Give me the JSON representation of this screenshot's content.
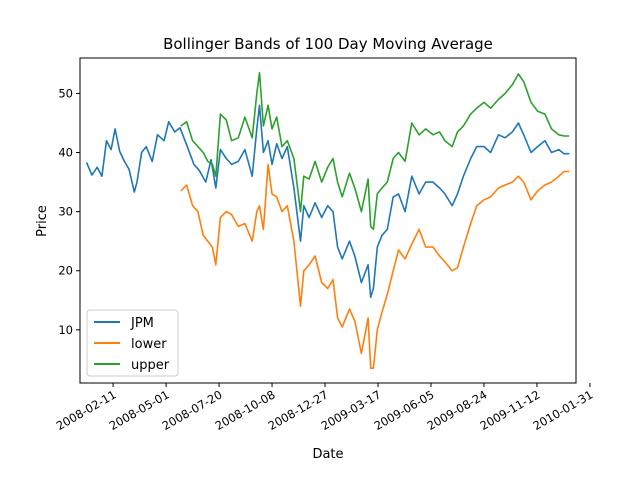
{
  "chart_data": {
    "type": "line",
    "title": "Bollinger Bands of 100 Day Moving Average",
    "xlabel": "Date",
    "ylabel": "Price",
    "xlim": [
      "2008-01-02",
      "2009-12-31"
    ],
    "ylim": [
      1,
      56
    ],
    "grid": false,
    "legend_position": "lower-left",
    "x_ticks": [
      "2008-02-11",
      "2008-05-01",
      "2008-07-20",
      "2008-10-08",
      "2008-12-27",
      "2009-03-17",
      "2009-06-05",
      "2009-08-24",
      "2009-11-12",
      "2010-01-31"
    ],
    "y_ticks": [
      10,
      20,
      30,
      40,
      50
    ],
    "series": [
      {
        "name": "JPM",
        "color": "#1f77b4",
        "points": [
          [
            "2008-01-02",
            38.3
          ],
          [
            "2008-01-10",
            36.2
          ],
          [
            "2008-01-18",
            37.5
          ],
          [
            "2008-01-25",
            36.0
          ],
          [
            "2008-02-01",
            42.0
          ],
          [
            "2008-02-08",
            40.5
          ],
          [
            "2008-02-14",
            44.0
          ],
          [
            "2008-02-21",
            40.2
          ],
          [
            "2008-02-28",
            38.5
          ],
          [
            "2008-03-06",
            37.2
          ],
          [
            "2008-03-14",
            33.3
          ],
          [
            "2008-03-18",
            35.0
          ],
          [
            "2008-03-25",
            40.0
          ],
          [
            "2008-04-01",
            41.0
          ],
          [
            "2008-04-10",
            38.5
          ],
          [
            "2008-04-18",
            43.0
          ],
          [
            "2008-04-28",
            42.0
          ],
          [
            "2008-05-05",
            45.2
          ],
          [
            "2008-05-14",
            43.5
          ],
          [
            "2008-05-22",
            44.2
          ],
          [
            "2008-06-02",
            41.0
          ],
          [
            "2008-06-12",
            38.0
          ],
          [
            "2008-06-20",
            37.0
          ],
          [
            "2008-06-30",
            35.0
          ],
          [
            "2008-07-08",
            38.8
          ],
          [
            "2008-07-15",
            34.0
          ],
          [
            "2008-07-22",
            40.5
          ],
          [
            "2008-07-31",
            39.0
          ],
          [
            "2008-08-08",
            38.0
          ],
          [
            "2008-08-18",
            38.5
          ],
          [
            "2008-08-28",
            40.5
          ],
          [
            "2008-09-08",
            36.0
          ],
          [
            "2008-09-15",
            44.0
          ],
          [
            "2008-09-19",
            48.0
          ],
          [
            "2008-09-25",
            40.0
          ],
          [
            "2008-10-02",
            42.0
          ],
          [
            "2008-10-08",
            38.0
          ],
          [
            "2008-10-15",
            41.5
          ],
          [
            "2008-10-23",
            39.0
          ],
          [
            "2008-10-31",
            41.0
          ],
          [
            "2008-11-10",
            34.0
          ],
          [
            "2008-11-20",
            25.0
          ],
          [
            "2008-11-25",
            31.0
          ],
          [
            "2008-12-03",
            29.0
          ],
          [
            "2008-12-12",
            31.5
          ],
          [
            "2008-12-22",
            29.0
          ],
          [
            "2008-12-31",
            31.0
          ],
          [
            "2009-01-08",
            30.0
          ],
          [
            "2009-01-15",
            24.0
          ],
          [
            "2009-01-22",
            22.0
          ],
          [
            "2009-02-02",
            25.0
          ],
          [
            "2009-02-10",
            22.5
          ],
          [
            "2009-02-20",
            18.0
          ],
          [
            "2009-03-02",
            21.0
          ],
          [
            "2009-03-06",
            15.5
          ],
          [
            "2009-03-10",
            17.0
          ],
          [
            "2009-03-16",
            24.0
          ],
          [
            "2009-03-23",
            26.0
          ],
          [
            "2009-03-31",
            27.0
          ],
          [
            "2009-04-09",
            32.5
          ],
          [
            "2009-04-17",
            33.0
          ],
          [
            "2009-04-27",
            30.0
          ],
          [
            "2009-05-07",
            36.0
          ],
          [
            "2009-05-18",
            33.0
          ],
          [
            "2009-05-28",
            35.0
          ],
          [
            "2009-06-08",
            35.0
          ],
          [
            "2009-06-18",
            34.0
          ],
          [
            "2009-06-26",
            33.0
          ],
          [
            "2009-07-07",
            31.0
          ],
          [
            "2009-07-15",
            33.0
          ],
          [
            "2009-07-24",
            36.0
          ],
          [
            "2009-08-04",
            39.0
          ],
          [
            "2009-08-13",
            41.0
          ],
          [
            "2009-08-24",
            41.0
          ],
          [
            "2009-09-03",
            40.0
          ],
          [
            "2009-09-15",
            43.0
          ],
          [
            "2009-09-25",
            42.5
          ],
          [
            "2009-10-06",
            43.5
          ],
          [
            "2009-10-15",
            45.0
          ],
          [
            "2009-10-23",
            43.0
          ],
          [
            "2009-11-03",
            40.0
          ],
          [
            "2009-11-13",
            41.0
          ],
          [
            "2009-11-24",
            42.0
          ],
          [
            "2009-12-04",
            40.0
          ],
          [
            "2009-12-15",
            40.5
          ],
          [
            "2009-12-23",
            39.8
          ],
          [
            "2009-12-31",
            39.8
          ]
        ]
      },
      {
        "name": "lower",
        "color": "#ff7f0e",
        "points": [
          [
            "2008-05-23",
            33.5
          ],
          [
            "2008-06-01",
            34.5
          ],
          [
            "2008-06-10",
            31.0
          ],
          [
            "2008-06-18",
            30.0
          ],
          [
            "2008-06-26",
            26.0
          ],
          [
            "2008-07-03",
            25.0
          ],
          [
            "2008-07-10",
            24.0
          ],
          [
            "2008-07-15",
            21.0
          ],
          [
            "2008-07-22",
            29.0
          ],
          [
            "2008-07-31",
            30.0
          ],
          [
            "2008-08-08",
            29.5
          ],
          [
            "2008-08-18",
            27.5
          ],
          [
            "2008-08-28",
            28.0
          ],
          [
            "2008-09-08",
            25.0
          ],
          [
            "2008-09-15",
            30.0
          ],
          [
            "2008-09-19",
            31.0
          ],
          [
            "2008-09-25",
            27.0
          ],
          [
            "2008-10-02",
            38.0
          ],
          [
            "2008-10-08",
            33.0
          ],
          [
            "2008-10-15",
            32.5
          ],
          [
            "2008-10-23",
            30.0
          ],
          [
            "2008-10-31",
            31.0
          ],
          [
            "2008-11-10",
            25.0
          ],
          [
            "2008-11-20",
            14.0
          ],
          [
            "2008-11-25",
            20.0
          ],
          [
            "2008-12-03",
            21.0
          ],
          [
            "2008-12-12",
            22.5
          ],
          [
            "2008-12-22",
            18.0
          ],
          [
            "2008-12-31",
            17.0
          ],
          [
            "2009-01-08",
            18.5
          ],
          [
            "2009-01-15",
            12.0
          ],
          [
            "2009-01-22",
            10.5
          ],
          [
            "2009-02-02",
            13.5
          ],
          [
            "2009-02-10",
            11.5
          ],
          [
            "2009-02-20",
            6.0
          ],
          [
            "2009-03-02",
            12.0
          ],
          [
            "2009-03-06",
            3.5
          ],
          [
            "2009-03-10",
            3.5
          ],
          [
            "2009-03-16",
            10.0
          ],
          [
            "2009-03-23",
            13.0
          ],
          [
            "2009-03-31",
            16.0
          ],
          [
            "2009-04-09",
            20.0
          ],
          [
            "2009-04-17",
            23.5
          ],
          [
            "2009-04-27",
            22.0
          ],
          [
            "2009-05-07",
            24.5
          ],
          [
            "2009-05-18",
            27.0
          ],
          [
            "2009-05-28",
            24.0
          ],
          [
            "2009-06-08",
            24.0
          ],
          [
            "2009-06-18",
            22.5
          ],
          [
            "2009-06-26",
            21.5
          ],
          [
            "2009-07-07",
            20.0
          ],
          [
            "2009-07-15",
            20.5
          ],
          [
            "2009-07-24",
            24.0
          ],
          [
            "2009-08-04",
            28.0
          ],
          [
            "2009-08-13",
            31.0
          ],
          [
            "2009-08-24",
            32.0
          ],
          [
            "2009-09-03",
            32.5
          ],
          [
            "2009-09-15",
            34.0
          ],
          [
            "2009-09-25",
            34.5
          ],
          [
            "2009-10-06",
            35.0
          ],
          [
            "2009-10-15",
            36.0
          ],
          [
            "2009-10-23",
            35.0
          ],
          [
            "2009-11-03",
            32.0
          ],
          [
            "2009-11-13",
            33.5
          ],
          [
            "2009-11-24",
            34.5
          ],
          [
            "2009-12-04",
            35.0
          ],
          [
            "2009-12-15",
            36.0
          ],
          [
            "2009-12-23",
            36.8
          ],
          [
            "2009-12-31",
            36.8
          ]
        ]
      },
      {
        "name": "upper",
        "color": "#2ca02c",
        "points": [
          [
            "2008-05-23",
            44.5
          ],
          [
            "2008-06-01",
            45.2
          ],
          [
            "2008-06-10",
            42.0
          ],
          [
            "2008-06-18",
            41.0
          ],
          [
            "2008-06-26",
            40.0
          ],
          [
            "2008-07-03",
            38.5
          ],
          [
            "2008-07-10",
            38.0
          ],
          [
            "2008-07-15",
            36.0
          ],
          [
            "2008-07-22",
            46.5
          ],
          [
            "2008-07-31",
            45.5
          ],
          [
            "2008-08-08",
            42.0
          ],
          [
            "2008-08-18",
            42.5
          ],
          [
            "2008-08-28",
            46.0
          ],
          [
            "2008-09-08",
            42.5
          ],
          [
            "2008-09-15",
            50.0
          ],
          [
            "2008-09-19",
            53.5
          ],
          [
            "2008-09-25",
            44.5
          ],
          [
            "2008-10-02",
            48.0
          ],
          [
            "2008-10-08",
            44.0
          ],
          [
            "2008-10-15",
            46.0
          ],
          [
            "2008-10-23",
            41.0
          ],
          [
            "2008-10-31",
            42.0
          ],
          [
            "2008-11-10",
            39.0
          ],
          [
            "2008-11-20",
            30.0
          ],
          [
            "2008-11-25",
            36.0
          ],
          [
            "2008-12-03",
            35.5
          ],
          [
            "2008-12-12",
            38.5
          ],
          [
            "2008-12-22",
            35.0
          ],
          [
            "2008-12-31",
            37.5
          ],
          [
            "2009-01-08",
            39.0
          ],
          [
            "2009-01-15",
            35.0
          ],
          [
            "2009-01-22",
            32.5
          ],
          [
            "2009-02-02",
            36.5
          ],
          [
            "2009-02-10",
            34.0
          ],
          [
            "2009-02-20",
            30.0
          ],
          [
            "2009-03-02",
            35.5
          ],
          [
            "2009-03-06",
            27.5
          ],
          [
            "2009-03-10",
            27.0
          ],
          [
            "2009-03-16",
            33.0
          ],
          [
            "2009-03-23",
            34.0
          ],
          [
            "2009-03-31",
            35.0
          ],
          [
            "2009-04-09",
            39.0
          ],
          [
            "2009-04-17",
            40.0
          ],
          [
            "2009-04-27",
            38.5
          ],
          [
            "2009-05-07",
            45.0
          ],
          [
            "2009-05-18",
            43.0
          ],
          [
            "2009-05-28",
            44.0
          ],
          [
            "2009-06-08",
            43.0
          ],
          [
            "2009-06-18",
            43.5
          ],
          [
            "2009-06-26",
            42.0
          ],
          [
            "2009-07-07",
            41.0
          ],
          [
            "2009-07-15",
            43.5
          ],
          [
            "2009-07-24",
            44.5
          ],
          [
            "2009-08-04",
            46.5
          ],
          [
            "2009-08-13",
            47.5
          ],
          [
            "2009-08-24",
            48.5
          ],
          [
            "2009-09-03",
            47.5
          ],
          [
            "2009-09-15",
            49.0
          ],
          [
            "2009-09-25",
            50.0
          ],
          [
            "2009-10-06",
            51.5
          ],
          [
            "2009-10-15",
            53.3
          ],
          [
            "2009-10-23",
            52.0
          ],
          [
            "2009-11-03",
            48.5
          ],
          [
            "2009-11-13",
            47.0
          ],
          [
            "2009-11-24",
            46.5
          ],
          [
            "2009-12-04",
            44.0
          ],
          [
            "2009-12-15",
            43.0
          ],
          [
            "2009-12-23",
            42.8
          ],
          [
            "2009-12-31",
            42.8
          ]
        ]
      }
    ]
  }
}
